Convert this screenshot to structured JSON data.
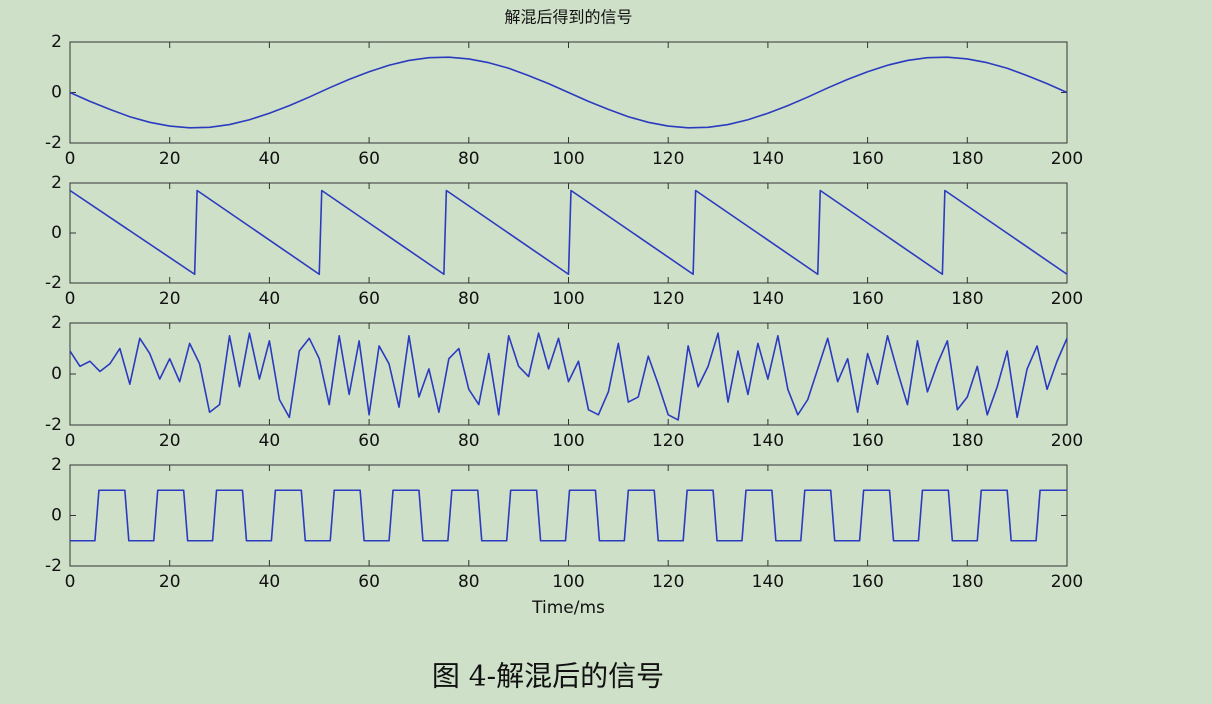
{
  "chart_data": [
    {
      "type": "line",
      "title": "解混后得到的信号",
      "color": "#2b3bbf",
      "x": [
        0,
        4,
        8,
        12,
        16,
        20,
        24,
        28,
        32,
        36,
        40,
        44,
        48,
        52,
        56,
        60,
        64,
        68,
        72,
        76,
        80,
        84,
        88,
        92,
        96,
        100,
        104,
        108,
        112,
        116,
        120,
        124,
        128,
        132,
        136,
        140,
        144,
        148,
        152,
        156,
        160,
        164,
        168,
        172,
        176,
        180,
        184,
        188,
        192,
        196,
        200
      ],
      "values": [
        0,
        -0.35,
        -0.67,
        -0.96,
        -1.18,
        -1.33,
        -1.4,
        -1.38,
        -1.27,
        -1.08,
        -0.82,
        -0.52,
        -0.18,
        0.18,
        0.52,
        0.82,
        1.08,
        1.27,
        1.38,
        1.4,
        1.33,
        1.18,
        0.96,
        0.67,
        0.35,
        0,
        -0.35,
        -0.67,
        -0.96,
        -1.18,
        -1.33,
        -1.4,
        -1.38,
        -1.27,
        -1.08,
        -0.82,
        -0.52,
        -0.18,
        0.18,
        0.52,
        0.82,
        1.08,
        1.27,
        1.38,
        1.4,
        1.33,
        1.18,
        0.96,
        0.67,
        0.35,
        0
      ],
      "xlim": [
        0,
        200
      ],
      "xticks": [
        0,
        20,
        40,
        60,
        80,
        100,
        120,
        140,
        160,
        180,
        200
      ],
      "ylim": [
        -2,
        2
      ],
      "yticks": [
        -2,
        0,
        2
      ]
    },
    {
      "type": "line",
      "color": "#2b3bbf",
      "x": [
        0,
        25,
        25.5,
        50,
        50.5,
        75,
        75.5,
        100,
        100.5,
        125,
        125.5,
        150,
        150.5,
        175,
        175.5,
        200
      ],
      "values": [
        1.7,
        -1.65,
        1.7,
        -1.65,
        1.7,
        -1.65,
        1.7,
        -1.65,
        1.7,
        -1.65,
        1.7,
        -1.65,
        1.7,
        -1.65,
        1.7,
        -1.65
      ],
      "xlim": [
        0,
        200
      ],
      "xticks": [
        0,
        20,
        40,
        60,
        80,
        100,
        120,
        140,
        160,
        180,
        200
      ],
      "ylim": [
        -2,
        2
      ],
      "yticks": [
        -2,
        0,
        2
      ]
    },
    {
      "type": "line",
      "color": "#2b3bbf",
      "x": [
        0,
        2,
        4,
        6,
        8,
        10,
        12,
        14,
        16,
        18,
        20,
        22,
        24,
        26,
        28,
        30,
        32,
        34,
        36,
        38,
        40,
        42,
        44,
        46,
        48,
        50,
        52,
        54,
        56,
        58,
        60,
        62,
        64,
        66,
        68,
        70,
        72,
        74,
        76,
        78,
        80,
        82,
        84,
        86,
        88,
        90,
        92,
        94,
        96,
        98,
        100,
        102,
        104,
        106,
        108,
        110,
        112,
        114,
        116,
        118,
        120,
        122,
        124,
        126,
        128,
        130,
        132,
        134,
        136,
        138,
        140,
        142,
        144,
        146,
        148,
        150,
        152,
        154,
        156,
        158,
        160,
        162,
        164,
        166,
        168,
        170,
        172,
        174,
        176,
        178,
        180,
        182,
        184,
        186,
        188,
        190,
        192,
        194,
        196,
        198,
        200
      ],
      "values": [
        0.9,
        0.3,
        0.5,
        0.1,
        0.4,
        1.0,
        -0.4,
        1.4,
        0.8,
        -0.2,
        0.6,
        -0.3,
        1.2,
        0.4,
        -1.5,
        -1.2,
        1.5,
        -0.5,
        1.6,
        -0.2,
        1.3,
        -1.0,
        -1.7,
        0.9,
        1.4,
        0.6,
        -1.2,
        1.5,
        -0.8,
        1.3,
        -1.6,
        1.1,
        0.4,
        -1.3,
        1.5,
        -0.9,
        0.2,
        -1.5,
        0.6,
        1.0,
        -0.6,
        -1.2,
        0.8,
        -1.6,
        1.5,
        0.3,
        -0.1,
        1.6,
        0.2,
        1.4,
        -0.3,
        0.5,
        -1.4,
        -1.6,
        -0.7,
        1.2,
        -1.1,
        -0.9,
        0.7,
        -0.4,
        -1.6,
        -1.8,
        1.1,
        -0.5,
        0.3,
        1.6,
        -1.1,
        0.9,
        -0.8,
        1.2,
        -0.2,
        1.5,
        -0.6,
        -1.6,
        -1.0,
        0.2,
        1.4,
        -0.3,
        0.6,
        -1.5,
        0.8,
        -0.4,
        1.5,
        0.1,
        -1.2,
        1.3,
        -0.7,
        0.4,
        1.3,
        -1.4,
        -0.9,
        0.3,
        -1.6,
        -0.5,
        0.9,
        -1.7,
        0.2,
        1.1,
        -0.6,
        0.5,
        1.4
      ],
      "xlim": [
        0,
        200
      ],
      "xticks": [
        0,
        20,
        40,
        60,
        80,
        100,
        120,
        140,
        160,
        180,
        200
      ],
      "ylim": [
        -2,
        2
      ],
      "yticks": [
        -2,
        0,
        2
      ]
    },
    {
      "type": "line",
      "xlabel": "Time/ms",
      "color": "#2b3bbf",
      "x": [
        0,
        5.0,
        5.8,
        11.0,
        11.8,
        16.8,
        17.6,
        22.8,
        23.6,
        28.6,
        29.4,
        34.6,
        35.4,
        40.4,
        41.2,
        46.4,
        47.2,
        52.2,
        53.0,
        58.2,
        59.0,
        64.0,
        64.8,
        70.0,
        70.8,
        75.8,
        76.6,
        81.8,
        82.6,
        87.6,
        88.4,
        93.6,
        94.4,
        99.4,
        100.2,
        105.4,
        106.2,
        111.2,
        112.0,
        117.2,
        118.0,
        123.0,
        123.8,
        129.0,
        129.8,
        134.8,
        135.6,
        140.8,
        141.6,
        146.6,
        147.4,
        152.6,
        153.4,
        158.4,
        159.2,
        164.4,
        165.2,
        170.2,
        171.0,
        176.2,
        177.0,
        182.0,
        182.8,
        188.0,
        188.8,
        193.8,
        194.6,
        200
      ],
      "values": [
        -1,
        -1,
        1,
        1,
        -1,
        -1,
        1,
        1,
        -1,
        -1,
        1,
        1,
        -1,
        -1,
        1,
        1,
        -1,
        -1,
        1,
        1,
        -1,
        -1,
        1,
        1,
        -1,
        -1,
        1,
        1,
        -1,
        -1,
        1,
        1,
        -1,
        -1,
        1,
        1,
        -1,
        -1,
        1,
        1,
        -1,
        -1,
        1,
        1,
        -1,
        -1,
        1,
        1,
        -1,
        -1,
        1,
        1,
        -1,
        -1,
        1,
        1,
        -1,
        -1,
        1,
        1,
        -1,
        -1,
        1,
        1,
        -1,
        -1,
        1,
        1
      ],
      "xlim": [
        0,
        200
      ],
      "xticks": [
        0,
        20,
        40,
        60,
        80,
        100,
        120,
        140,
        160,
        180,
        200
      ],
      "ylim": [
        -2,
        2
      ],
      "yticks": [
        -2,
        0,
        2
      ]
    }
  ],
  "caption": "图 4-解混后的信号"
}
